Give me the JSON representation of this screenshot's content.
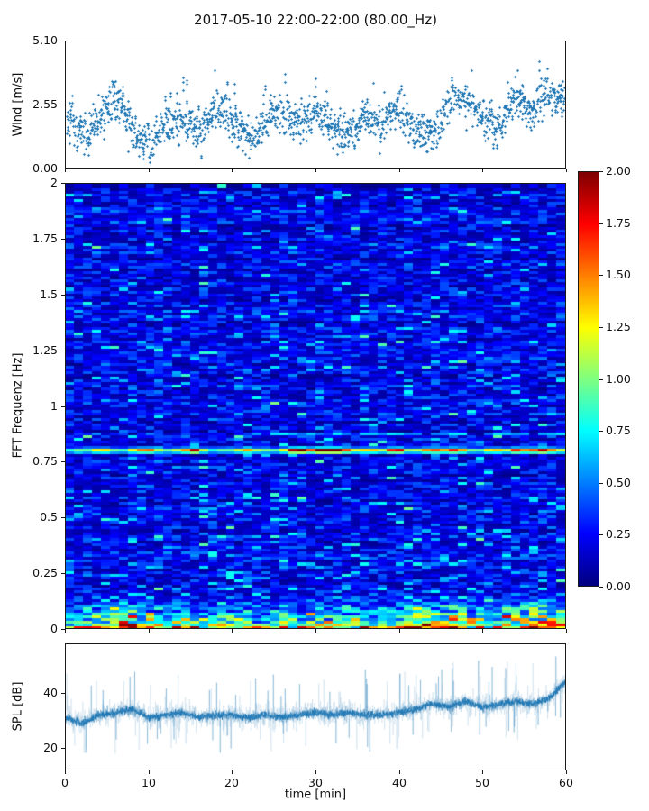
{
  "title": "2017-05-10 22:00-22:00 (80.00_Hz)",
  "colorbar": {
    "ticks": {
      "values": [
        0,
        0.25,
        0.5,
        0.75,
        1.0,
        1.25,
        1.5,
        1.75,
        2.0
      ],
      "labels": [
        "0.00",
        "0.25",
        "0.50",
        "0.75",
        "1.00",
        "1.25",
        "1.50",
        "1.75",
        "2.00"
      ]
    },
    "colormap": "jet"
  },
  "chart_data": [
    {
      "id": "wind",
      "type": "scatter",
      "ylabel": "Wind [m/s]",
      "xlim": [
        0,
        60
      ],
      "ylim": [
        0,
        5.1
      ],
      "yticks": {
        "values": [
          0,
          2.55,
          5.1
        ],
        "labels": [
          "0.00",
          "2.55",
          "5.10"
        ]
      },
      "xticks": {
        "values": [
          0,
          10,
          20,
          30,
          40,
          50,
          60
        ],
        "labels": []
      },
      "marker": "+",
      "color": "#1f77b4",
      "n_points": 1250,
      "noise_sigma": 0.45,
      "seed": 7,
      "envelope": {
        "t": [
          0,
          2,
          4,
          6,
          8,
          10,
          12,
          14,
          16,
          18,
          20,
          22,
          24,
          26,
          28,
          30,
          32,
          34,
          36,
          38,
          40,
          42,
          44,
          46,
          48,
          50,
          52,
          54,
          56,
          58,
          60
        ],
        "v": [
          2.2,
          1.2,
          1.9,
          2.9,
          1.4,
          1.0,
          1.9,
          2.0,
          1.7,
          2.5,
          1.9,
          1.2,
          1.9,
          2.2,
          1.9,
          2.3,
          1.6,
          1.4,
          2.2,
          1.9,
          2.4,
          1.6,
          1.3,
          2.6,
          2.9,
          2.0,
          1.6,
          2.9,
          2.3,
          3.0,
          2.7
        ]
      }
    },
    {
      "id": "spectrogram",
      "type": "heatmap",
      "ylabel": "FFT Frequenz [Hz]",
      "xlim": [
        0,
        60
      ],
      "ylim": [
        0,
        2
      ],
      "clim": [
        0,
        2
      ],
      "colormap": "jet",
      "rows": 160,
      "cols": 56,
      "seed": 11,
      "yticks": {
        "values": [
          2,
          1.75,
          1.5,
          1.25,
          1,
          0.75,
          0.5,
          0.25,
          0
        ],
        "labels": [
          "2",
          "1.75",
          "1.5",
          "1.25",
          "1",
          "0.75",
          "0.5",
          "0.25",
          "0"
        ]
      },
      "xticks": {
        "values": [
          0,
          10,
          20,
          30,
          40,
          50,
          60
        ],
        "labels": []
      },
      "background_mean": 0.25,
      "band": {
        "freq": 0.8,
        "base": 0.72,
        "peaks": [
          [
            4,
            1.2
          ],
          [
            9,
            1.45
          ],
          [
            15,
            1.65
          ],
          [
            22,
            1.15
          ],
          [
            28,
            1.85
          ],
          [
            31,
            2.0
          ],
          [
            33,
            1.6
          ],
          [
            36,
            1.25
          ],
          [
            40,
            1.55
          ],
          [
            44,
            1.35
          ],
          [
            47,
            1.55
          ],
          [
            52,
            1.25
          ],
          [
            55,
            1.45
          ],
          [
            58,
            1.65
          ]
        ]
      },
      "secondary_band": {
        "freq": 0.88,
        "start_t": 22,
        "value": 0.45
      },
      "low_freq": {
        "below_hz": 0.15,
        "bottom_row_range": [
          1.0,
          2.0
        ],
        "clusters": [
          [
            7,
            0.9
          ],
          [
            9,
            0.6
          ],
          [
            42,
            1.0
          ],
          [
            44,
            0.7
          ],
          [
            48,
            0.9
          ],
          [
            54,
            0.6
          ],
          [
            56,
            0.9
          ],
          [
            59,
            0.8
          ]
        ]
      }
    },
    {
      "id": "spl",
      "type": "line",
      "ylabel": "SPL [dB]",
      "xlabel": "time [min]",
      "xlim": [
        0,
        60
      ],
      "ylim": [
        12,
        58
      ],
      "yticks": {
        "values": [
          20,
          40
        ],
        "labels": [
          "20",
          "40"
        ]
      },
      "xticks": {
        "values": [
          0,
          10,
          20,
          30,
          40,
          50,
          60
        ],
        "labels": [
          "0",
          "10",
          "20",
          "30",
          "40",
          "50",
          "60"
        ]
      },
      "color": "#1f77b4",
      "n_points": 2000,
      "noise_sigma": 2.0,
      "seed": 3,
      "envelope": {
        "t": [
          0,
          2,
          4,
          6,
          8,
          10,
          12,
          14,
          16,
          18,
          20,
          22,
          24,
          26,
          28,
          30,
          32,
          34,
          36,
          38,
          40,
          42,
          44,
          46,
          48,
          50,
          52,
          54,
          56,
          58,
          60
        ],
        "v": [
          31,
          29,
          32,
          33,
          34,
          31,
          32,
          33,
          31,
          32,
          32,
          31,
          32,
          31,
          32,
          33,
          32,
          33,
          32,
          32,
          33,
          34,
          36,
          35,
          37,
          35,
          36,
          37,
          36,
          38,
          44
        ]
      }
    }
  ]
}
